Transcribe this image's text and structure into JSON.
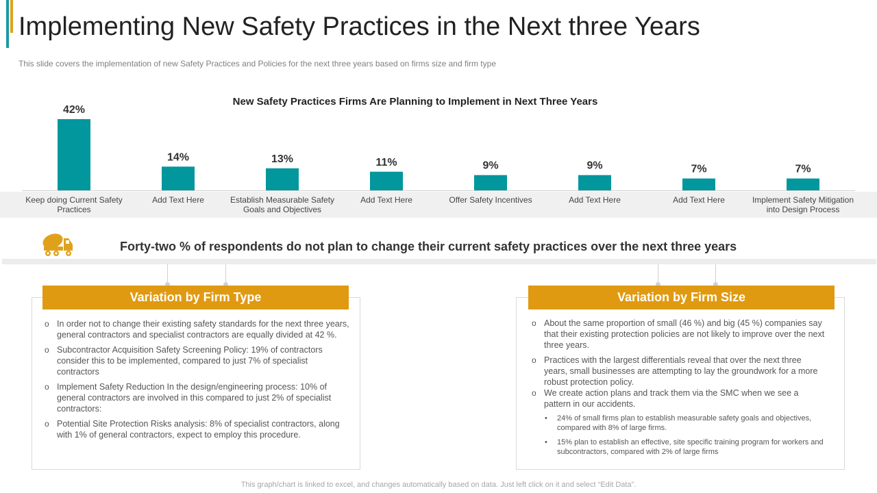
{
  "slide": {
    "title": "Implementing New Safety Practices in the Next three Years",
    "subtitle": "This slide covers the implementation of new Safety Practices and Policies  for the next three years based on firms size and firm type",
    "footer": "This graph/chart is linked to excel,  and changes automatically based on data. Just left click on it and select “Edit Data”.",
    "accent_teal": "#1a9aa0",
    "accent_gold": "#e0a11a"
  },
  "chart_data": {
    "type": "bar",
    "title": "New Safety Practices Firms Are Planning to Implement in Next Three Years",
    "categories": [
      "Keep doing Current Safety Practices",
      "Add Text Here",
      "Establish Measurable Safety Goals and Objectives",
      "Add Text Here",
      "Offer Safety Incentives",
      "Add Text Here",
      "Add Text Here",
      "Implement Safety Mitigation into Design Process"
    ],
    "values": [
      42,
      14,
      13,
      11,
      9,
      9,
      7,
      7
    ],
    "value_labels": [
      "42%",
      "14%",
      "13%",
      "11%",
      "9%",
      "9%",
      "7%",
      "7%"
    ],
    "xlabel": "",
    "ylabel": "",
    "ylim": [
      0,
      42
    ],
    "grid": false,
    "bar_color": "#01979d"
  },
  "highlight": {
    "icon": "cement-truck-icon",
    "text": "Forty-two % of respondents do not plan to change their current safety practices over the next three years"
  },
  "panels": {
    "firm_type": {
      "header": "Variation by Firm Type",
      "items": [
        "In order not to change their existing safety standards for the next three years, general contractors and specialist contractors are equally divided at 42 %.",
        "Subcontractor Acquisition Safety Screening Policy: 19% of contractors consider this to be implemented, compared to just 7% of specialist contractors",
        "Implement Safety Reduction In the design/engineering  process: 10% of general contractors are involved  in this compared to just 2% of specialist contractors:",
        "Potential Site Protection Risks analysis: 8% of specialist contractors, along with 1% of general contractors, expect to employ this procedure."
      ]
    },
    "firm_size": {
      "header": "Variation by Firm Size",
      "items": [
        "About the same proportion  of small (46 %) and big (45 %) companies say that their existing protection policies are not likely to improve  over the next three years.",
        "Practices with the largest differentials  reveal that over the next three years, small businesses are attempting to lay the groundwork  for a more robust protection policy.",
        "We create action plans and track them via the SMC when we see a pattern in our accidents."
      ],
      "sub_items": [
        "24% of small firms plan to establish measurable safety goals and objectives, compared with 8% of large firms.",
        "15% plan to establish an effective, site specific training program for workers and subcontractors, compared with 2% of large firms"
      ]
    },
    "header_color": "#e09a11"
  }
}
